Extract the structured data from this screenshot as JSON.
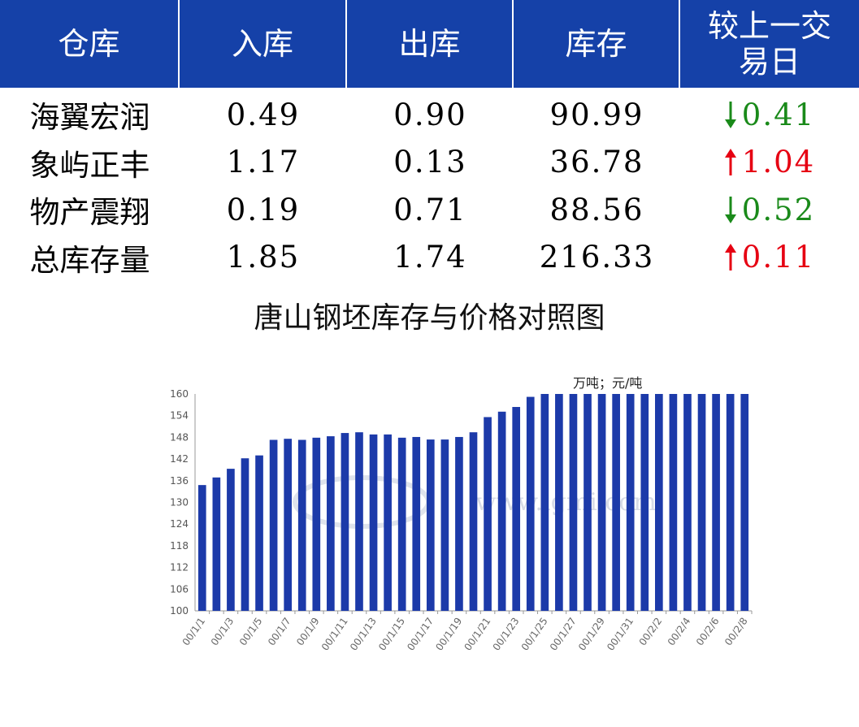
{
  "table": {
    "headers": [
      "仓库",
      "入库",
      "出库",
      "库存",
      "较上一交易日"
    ],
    "rows": [
      {
        "name": "海翼宏润",
        "in": "0.49",
        "out": "0.90",
        "stock": "90.99",
        "direction": "down",
        "change": "0.41"
      },
      {
        "name": "象屿正丰",
        "in": "1.17",
        "out": "0.13",
        "stock": "36.78",
        "direction": "up",
        "change": "1.04"
      },
      {
        "name": "物产震翔",
        "in": "0.19",
        "out": "0.71",
        "stock": "88.56",
        "direction": "down",
        "change": "0.52"
      },
      {
        "name": "总库存量",
        "in": "1.85",
        "out": "1.74",
        "stock": "216.33",
        "direction": "up",
        "change": "0.11"
      }
    ],
    "colors": {
      "header_bg": "#1541a8",
      "up": "#e60012",
      "down": "#1a8a1a"
    }
  },
  "chart_data": {
    "type": "bar",
    "title": "唐山钢坯库存与价格对照图",
    "unit_label": "万吨；元/吨",
    "watermark": "www.lgmi.com",
    "ylim": [
      100,
      160
    ],
    "yticks": [
      100,
      106,
      112,
      118,
      124,
      130,
      136,
      142,
      148,
      154,
      160
    ],
    "categories": [
      "00/1/1",
      "00/1/2",
      "00/1/3",
      "00/1/4",
      "00/1/5",
      "00/1/6",
      "00/1/7",
      "00/1/8",
      "00/1/9",
      "00/1/10",
      "00/1/11",
      "00/1/12",
      "00/1/13",
      "00/1/14",
      "00/1/15",
      "00/1/16",
      "00/1/17",
      "00/1/18",
      "00/1/19",
      "00/1/20",
      "00/1/21",
      "00/1/22",
      "00/1/23",
      "00/1/24",
      "00/1/25",
      "00/1/26",
      "00/1/27",
      "00/1/28",
      "00/1/29",
      "00/1/30",
      "00/1/31",
      "00/2/1",
      "00/2/2",
      "00/2/3",
      "00/2/4",
      "00/2/5",
      "00/2/6",
      "00/2/7",
      "00/2/8"
    ],
    "values": [
      134.8,
      136.9,
      139.3,
      142.2,
      143.0,
      147.3,
      147.6,
      147.3,
      147.9,
      148.3,
      149.2,
      149.4,
      148.8,
      148.8,
      147.9,
      148.1,
      147.4,
      147.4,
      148.1,
      149.4,
      153.6,
      155.1,
      156.4,
      159.2,
      160,
      160,
      160,
      160,
      160,
      160,
      160,
      160,
      160,
      160,
      160,
      160,
      160,
      160,
      160
    ],
    "bar_color": "#1c3aa9",
    "grid": false,
    "legend": "none"
  }
}
